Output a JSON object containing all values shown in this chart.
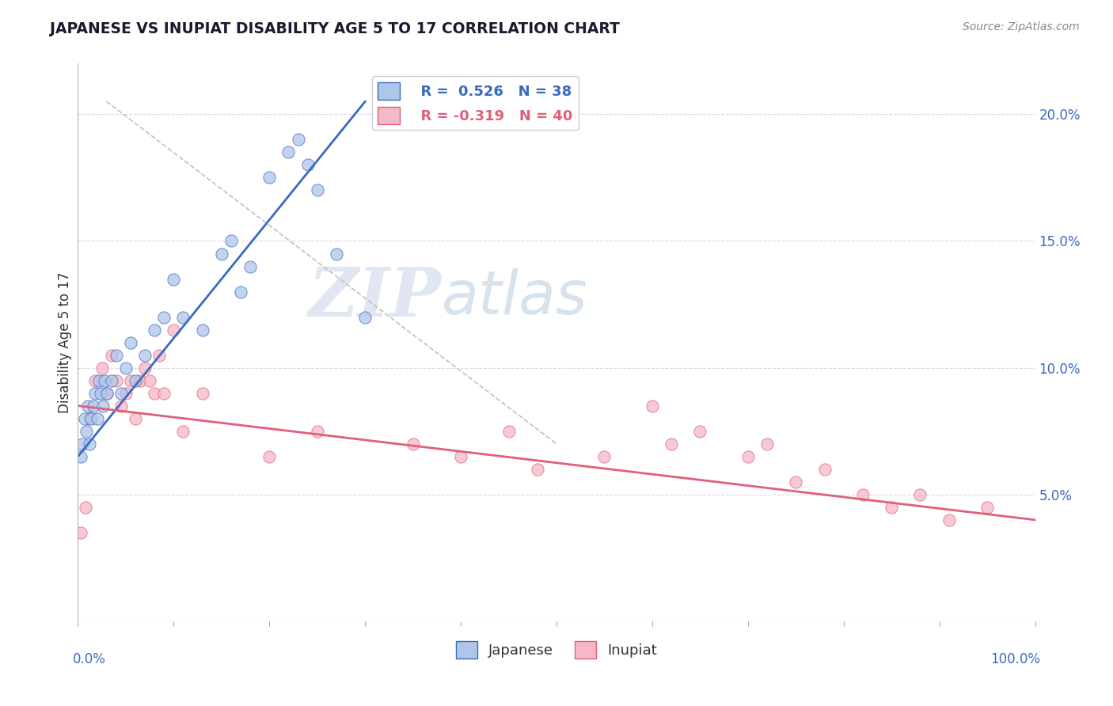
{
  "title": "JAPANESE VS INUPIAT DISABILITY AGE 5 TO 17 CORRELATION CHART",
  "ylabel": "Disability Age 5 to 17",
  "source": "Source: ZipAtlas.com",
  "watermark_zip": "ZIP",
  "watermark_atlas": "atlas",
  "legend_label1": "Japanese",
  "legend_label2": "Inupiat",
  "r1": 0.526,
  "n1": 38,
  "r2": -0.319,
  "n2": 40,
  "color_japanese": "#aec6e8",
  "color_inupiat": "#f5b8c8",
  "color_line1": "#3a6abf",
  "color_line2": "#e0607a",
  "color_dashed": "#c0c0c8",
  "japanese_x": [
    0.3,
    0.5,
    0.7,
    0.9,
    1.0,
    1.2,
    1.4,
    1.6,
    1.8,
    2.0,
    2.2,
    2.4,
    2.6,
    2.8,
    3.0,
    3.5,
    4.0,
    4.5,
    5.0,
    5.5,
    6.0,
    7.0,
    8.0,
    9.0,
    10.0,
    11.0,
    13.0,
    15.0,
    16.0,
    17.0,
    18.0,
    20.0,
    22.0,
    23.0,
    24.0,
    25.0,
    27.0,
    30.0
  ],
  "japanese_y": [
    6.5,
    7.0,
    8.0,
    7.5,
    8.5,
    7.0,
    8.0,
    8.5,
    9.0,
    8.0,
    9.5,
    9.0,
    8.5,
    9.5,
    9.0,
    9.5,
    10.5,
    9.0,
    10.0,
    11.0,
    9.5,
    10.5,
    11.5,
    12.0,
    13.5,
    12.0,
    11.5,
    14.5,
    15.0,
    13.0,
    14.0,
    17.5,
    18.5,
    19.0,
    18.0,
    17.0,
    14.5,
    12.0
  ],
  "inupiat_x": [
    0.3,
    0.8,
    1.2,
    1.8,
    2.5,
    3.0,
    3.5,
    4.0,
    4.5,
    5.0,
    5.5,
    6.0,
    6.5,
    7.0,
    7.5,
    8.0,
    8.5,
    9.0,
    10.0,
    11.0,
    13.0,
    20.0,
    25.0,
    35.0,
    40.0,
    45.0,
    48.0,
    55.0,
    60.0,
    62.0,
    65.0,
    70.0,
    72.0,
    75.0,
    78.0,
    82.0,
    85.0,
    88.0,
    91.0,
    95.0
  ],
  "inupiat_y": [
    3.5,
    4.5,
    8.0,
    9.5,
    10.0,
    9.0,
    10.5,
    9.5,
    8.5,
    9.0,
    9.5,
    8.0,
    9.5,
    10.0,
    9.5,
    9.0,
    10.5,
    9.0,
    11.5,
    7.5,
    9.0,
    6.5,
    7.5,
    7.0,
    6.5,
    7.5,
    6.0,
    6.5,
    8.5,
    7.0,
    7.5,
    6.5,
    7.0,
    5.5,
    6.0,
    5.0,
    4.5,
    5.0,
    4.0,
    4.5
  ],
  "xlim": [
    0,
    100
  ],
  "ylim": [
    0,
    22
  ],
  "yticks": [
    5,
    10,
    15,
    20
  ],
  "ytick_labels": [
    "5.0%",
    "10.0%",
    "15.0%",
    "20.0%"
  ],
  "xticks": [
    0,
    10,
    20,
    30,
    40,
    50,
    60,
    70,
    80,
    90,
    100
  ],
  "grid_color": "#d8d8e8",
  "background_color": "#ffffff",
  "trend_line1_x": [
    0,
    30
  ],
  "trend_line1_y": [
    6.5,
    20.5
  ],
  "trend_line2_x": [
    0,
    100
  ],
  "trend_line2_y": [
    8.5,
    4.0
  ],
  "dash_line_x": [
    3,
    50
  ],
  "dash_line_y": [
    20.5,
    7.0
  ]
}
